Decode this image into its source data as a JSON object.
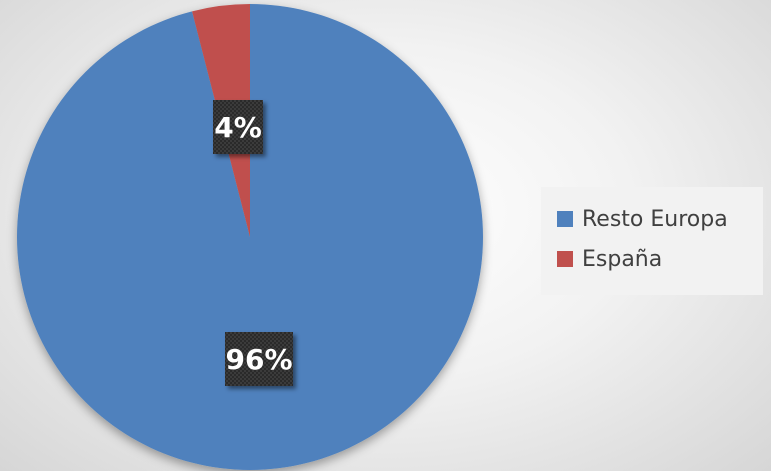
{
  "chart_data": {
    "type": "pie",
    "categories": [
      "Resto Europa",
      "España"
    ],
    "values": [
      96,
      4
    ],
    "data_labels": [
      "96%",
      "4%"
    ],
    "colors": [
      "#4f81bd",
      "#c0504d"
    ],
    "legend_position": "right",
    "title": ""
  },
  "legend": {
    "items": [
      {
        "label": "Resto Europa",
        "color": "#4f81bd"
      },
      {
        "label": "España",
        "color": "#c0504d"
      }
    ]
  }
}
